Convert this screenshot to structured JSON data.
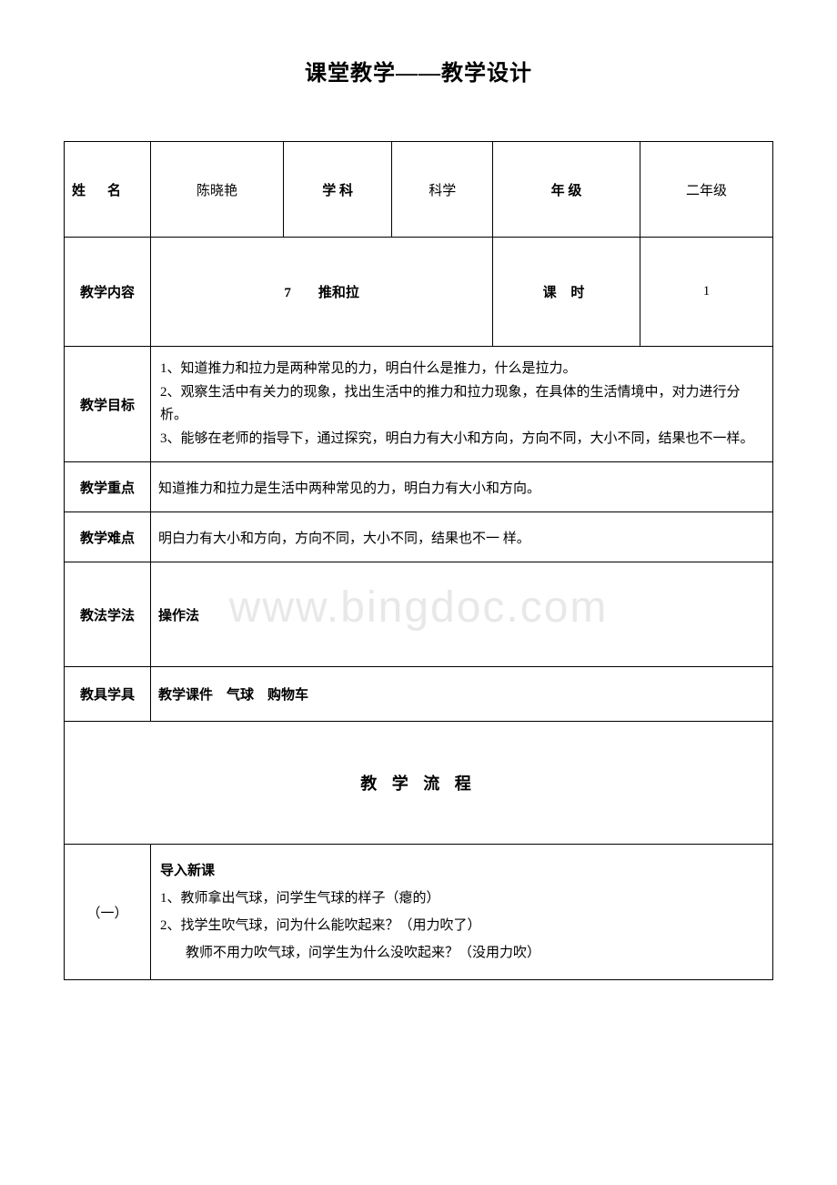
{
  "title": "课堂教学——教学设计",
  "watermark": "www.bingdoc.com",
  "header": {
    "name_label": "姓名",
    "name_value": "陈晓艳",
    "subject_label": "学 科",
    "subject_value": "科学",
    "grade_label": "年 级",
    "grade_value": "二年级"
  },
  "content": {
    "label": "教学内容",
    "value": "7　　推和拉",
    "period_label": "课 时",
    "period_value": "1"
  },
  "objective": {
    "label": "教学目标",
    "line1": "1、知道推力和拉力是两种常见的力，明白什么是推力，什么是拉力。",
    "line2": "2、观察生活中有关力的现象，找出生活中的推力和拉力现象，在具体的生活情境中，对力进行分析。",
    "line3": "3、能够在老师的指导下，通过探究，明白力有大小和方向，方向不同，大小不同，结果也不一样。"
  },
  "keypoint": {
    "label": "教学重点",
    "value": "知道推力和拉力是生活中两种常见的力，明白力有大小和方向。"
  },
  "difficulty": {
    "label": "教学难点",
    "value": "明白力有大小和方向，方向不同，大小不同，结果也不一 样。"
  },
  "method": {
    "label": "教法学法",
    "value": "操作法"
  },
  "tool": {
    "label": "教具学具",
    "value": "教学课件　气球　购物车"
  },
  "flow": {
    "header": "教 学 流 程",
    "section1": {
      "num": "（一）",
      "title": "导入新课",
      "line1": "1、教师拿出气球，问学生气球的样子（瘪的）",
      "line2": "2、找学生吹气球，问为什么能吹起来？（用力吹了）",
      "line3": "教师不用力吹气球，问学生为什么没吹起来？（没用力吹）"
    }
  },
  "colors": {
    "border": "#000000",
    "background": "#ffffff",
    "text": "#000000",
    "watermark": "#e8e8e8"
  },
  "typography": {
    "title_fontsize": 24,
    "body_fontsize": 15,
    "flow_header_fontsize": 18,
    "font_family": "SimSun"
  }
}
